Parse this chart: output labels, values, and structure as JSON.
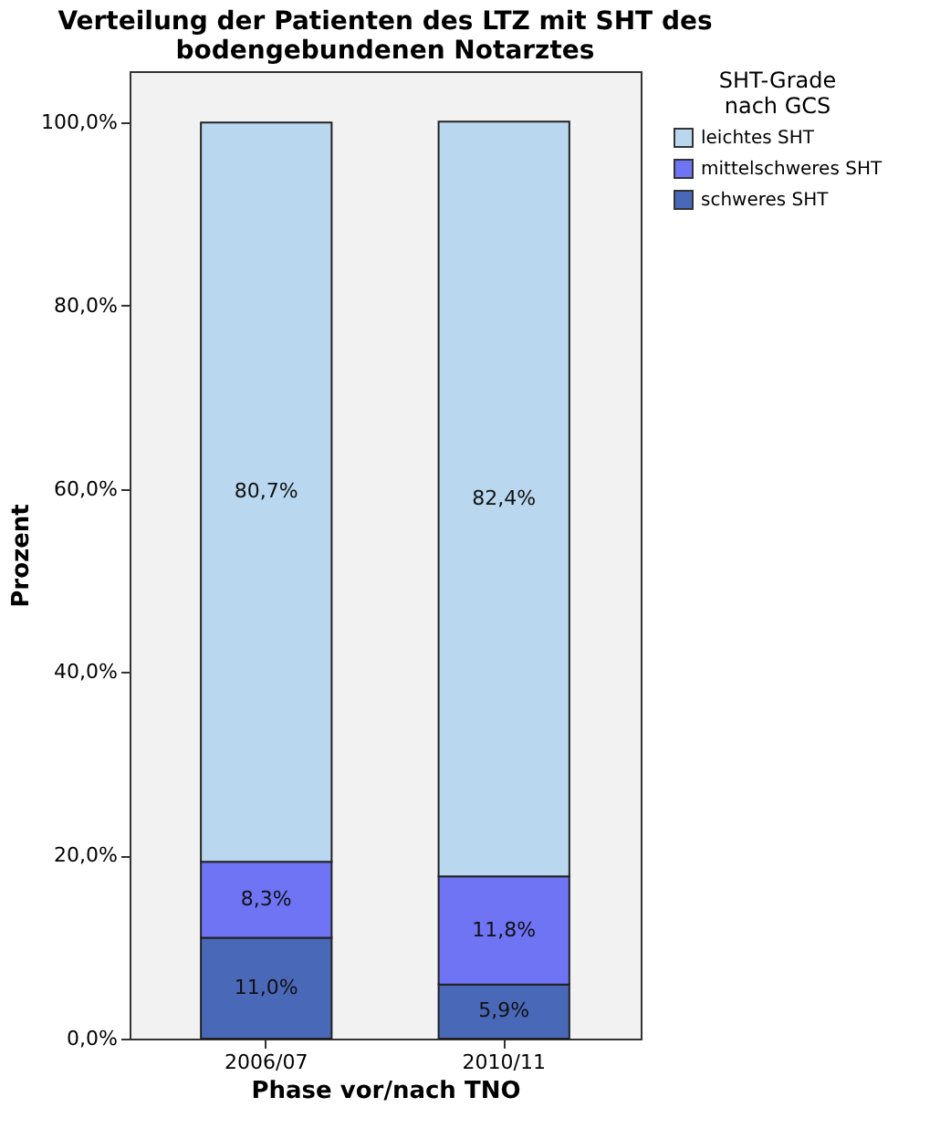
{
  "chart_data": {
    "type": "bar",
    "title": "Verteilung der Patienten des LTZ mit SHT des bodengebundenen Notarztes",
    "xlabel": "Phase vor/nach TNO",
    "ylabel": "Prozent",
    "legend_title": "SHT-Grade nach GCS",
    "categories": [
      "2006/07",
      "2010/11"
    ],
    "stacked": true,
    "legend": "top right",
    "series": [
      {
        "name": "schweres SHT",
        "color": "#4a68b8",
        "values": [
          11.0,
          5.9
        ],
        "value_labels": [
          "11,0%",
          "5,9%"
        ]
      },
      {
        "name": "mittelschweres SHT",
        "color": "#6f74f5",
        "values": [
          8.3,
          11.8
        ],
        "value_labels": [
          "8,3%",
          "11,8%"
        ]
      },
      {
        "name": "leichtes SHT",
        "color": "#b9d8f0",
        "values": [
          80.7,
          82.4
        ],
        "value_labels": [
          "80,7%",
          "82,4%"
        ]
      }
    ],
    "ylim": [
      0,
      105.6
    ],
    "yticks": [
      {
        "value": 0,
        "label": "0,0%"
      },
      {
        "value": 20,
        "label": "20,0%"
      },
      {
        "value": 40,
        "label": "40,0%"
      },
      {
        "value": 60,
        "label": "60,0%"
      },
      {
        "value": 80,
        "label": "80,0%"
      },
      {
        "value": 100,
        "label": "100,0%"
      }
    ],
    "grid": false
  }
}
